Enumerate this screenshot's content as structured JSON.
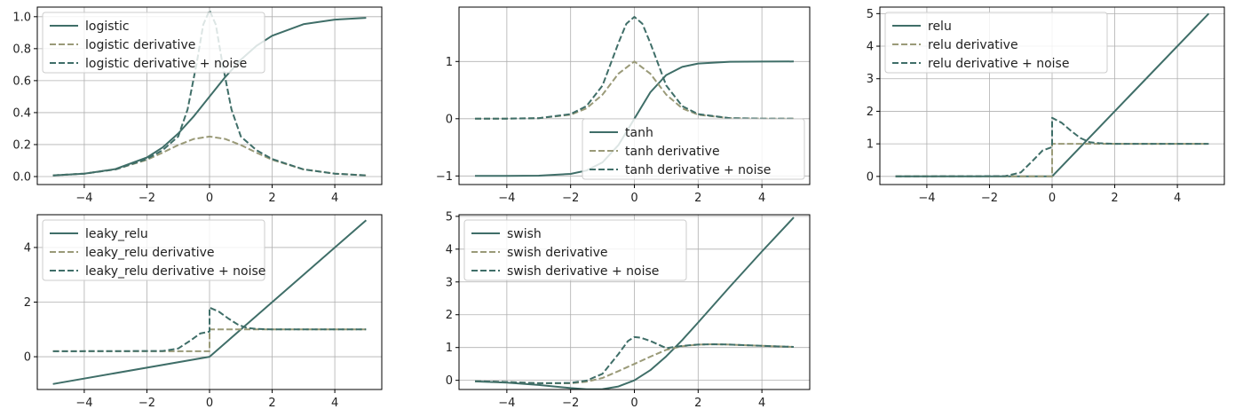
{
  "chart_data": [
    {
      "type": "line",
      "func": "logistic",
      "xlim": [
        -5.5,
        5.5
      ],
      "ylim": [
        -0.05,
        1.06
      ],
      "xticks": [
        -4,
        -2,
        0,
        2,
        4
      ],
      "xtick_labels": [
        "−4",
        "−2",
        "0",
        "2",
        "4"
      ],
      "yticks": [
        0,
        0.2,
        0.4,
        0.6,
        0.8,
        1.0
      ],
      "ytick_labels": [
        "0.0",
        "0.2",
        "0.4",
        "0.6",
        "0.8",
        "1.0"
      ],
      "grid": true,
      "legend_position": "top-left",
      "series": [
        {
          "name": "logistic",
          "color": "#3f6e68",
          "dash": "solid",
          "x": [
            -5,
            -4,
            -3,
            -2,
            -1.5,
            -1,
            -0.5,
            0,
            0.5,
            1,
            1.5,
            2,
            3,
            4,
            5
          ],
          "y": [
            0.007,
            0.018,
            0.047,
            0.119,
            0.182,
            0.269,
            0.378,
            0.5,
            0.622,
            0.731,
            0.818,
            0.881,
            0.953,
            0.982,
            0.993
          ]
        },
        {
          "name": "logistic derivative",
          "color": "#9a9a78",
          "dash": "dashed",
          "x": [
            -5,
            -4,
            -3,
            -2,
            -1.5,
            -1,
            -0.5,
            0,
            0.5,
            1,
            1.5,
            2,
            3,
            4,
            5
          ],
          "y": [
            0.007,
            0.018,
            0.045,
            0.105,
            0.149,
            0.197,
            0.235,
            0.25,
            0.235,
            0.197,
            0.149,
            0.105,
            0.045,
            0.018,
            0.007
          ]
        },
        {
          "name": "logistic derivative + noise",
          "color": "#3f6e68",
          "dash": "dashed",
          "x": [
            -5,
            -4,
            -3,
            -2,
            -1.5,
            -1,
            -0.7,
            -0.4,
            -0.2,
            0,
            0.2,
            0.4,
            0.7,
            1,
            1.5,
            2,
            3,
            4,
            5
          ],
          "y": [
            0.007,
            0.018,
            0.045,
            0.11,
            0.165,
            0.25,
            0.42,
            0.72,
            0.95,
            1.04,
            0.95,
            0.72,
            0.42,
            0.25,
            0.165,
            0.11,
            0.045,
            0.018,
            0.007
          ]
        }
      ]
    },
    {
      "type": "line",
      "func": "tanh",
      "xlim": [
        -5.5,
        5.5
      ],
      "ylim": [
        -1.15,
        1.95
      ],
      "xticks": [
        -4,
        -2,
        0,
        2,
        4
      ],
      "xtick_labels": [
        "−4",
        "−2",
        "0",
        "2",
        "4"
      ],
      "yticks": [
        -1,
        0,
        1
      ],
      "ytick_labels": [
        "−1",
        "0",
        "1"
      ],
      "grid": true,
      "legend_position": "bottom-right",
      "series": [
        {
          "name": "tanh",
          "color": "#3f6e68",
          "dash": "solid",
          "x": [
            -5,
            -4,
            -3,
            -2,
            -1.5,
            -1,
            -0.5,
            0,
            0.5,
            1,
            1.5,
            2,
            3,
            4,
            5
          ],
          "y": [
            -1,
            -0.999,
            -0.995,
            -0.964,
            -0.905,
            -0.762,
            -0.462,
            0,
            0.462,
            0.762,
            0.905,
            0.964,
            0.995,
            0.999,
            1
          ]
        },
        {
          "name": "tanh derivative",
          "color": "#9a9a78",
          "dash": "dashed",
          "x": [
            -5,
            -4,
            -3,
            -2,
            -1.5,
            -1,
            -0.5,
            0,
            0.5,
            1,
            1.5,
            2,
            3,
            4,
            5
          ],
          "y": [
            0,
            0.001,
            0.01,
            0.07,
            0.181,
            0.42,
            0.786,
            1,
            0.786,
            0.42,
            0.181,
            0.07,
            0.01,
            0.001,
            0
          ]
        },
        {
          "name": "tanh derivative + noise",
          "color": "#3f6e68",
          "dash": "dashed",
          "x": [
            -5,
            -4,
            -3,
            -2,
            -1.5,
            -1,
            -0.5,
            -0.25,
            0,
            0.25,
            0.5,
            1,
            1.5,
            2,
            3,
            4,
            5
          ],
          "y": [
            0,
            0.001,
            0.01,
            0.08,
            0.22,
            0.58,
            1.32,
            1.66,
            1.78,
            1.66,
            1.32,
            0.58,
            0.22,
            0.08,
            0.01,
            0.001,
            0
          ]
        }
      ]
    },
    {
      "type": "line",
      "func": "relu",
      "xlim": [
        -5.5,
        5.5
      ],
      "ylim": [
        -0.25,
        5.2
      ],
      "xticks": [
        -4,
        -2,
        0,
        2,
        4
      ],
      "xtick_labels": [
        "−4",
        "−2",
        "0",
        "2",
        "4"
      ],
      "yticks": [
        0,
        1,
        2,
        3,
        4,
        5
      ],
      "ytick_labels": [
        "0",
        "1",
        "2",
        "3",
        "4",
        "5"
      ],
      "grid": true,
      "legend_position": "top-left",
      "series": [
        {
          "name": "relu",
          "color": "#3f6e68",
          "dash": "solid",
          "x": [
            -5,
            0,
            5
          ],
          "y": [
            0,
            0,
            5
          ]
        },
        {
          "name": "relu derivative",
          "color": "#9a9a78",
          "dash": "dashed",
          "x": [
            -5,
            -0.001,
            0,
            5
          ],
          "y": [
            0,
            0,
            1,
            1
          ]
        },
        {
          "name": "relu derivative + noise",
          "color": "#3f6e68",
          "dash": "dashed",
          "x": [
            -5,
            -1.5,
            -1,
            -0.6,
            -0.3,
            -0.001,
            0,
            0.3,
            0.6,
            0.9,
            1.2,
            1.5,
            2,
            5
          ],
          "y": [
            0,
            0.01,
            0.12,
            0.5,
            0.8,
            0.9,
            1.8,
            1.65,
            1.4,
            1.18,
            1.05,
            1.02,
            1,
            1
          ]
        }
      ]
    },
    {
      "type": "line",
      "func": "leaky_relu",
      "xlim": [
        -5.5,
        5.5
      ],
      "ylim": [
        -1.2,
        5.2
      ],
      "xticks": [
        -4,
        -2,
        0,
        2,
        4
      ],
      "xtick_labels": [
        "−4",
        "−2",
        "0",
        "2",
        "4"
      ],
      "yticks": [
        0,
        2,
        4
      ],
      "ytick_labels": [
        "0",
        "2",
        "4"
      ],
      "grid": true,
      "legend_position": "top-left",
      "series": [
        {
          "name": "leaky_relu",
          "color": "#3f6e68",
          "dash": "solid",
          "x": [
            -5,
            0,
            5
          ],
          "y": [
            -1,
            0,
            5
          ]
        },
        {
          "name": "leaky_relu derivative",
          "color": "#9a9a78",
          "dash": "dashed",
          "x": [
            -5,
            -0.001,
            0,
            5
          ],
          "y": [
            0.2,
            0.2,
            1,
            1
          ]
        },
        {
          "name": "leaky_relu derivative + noise",
          "color": "#3f6e68",
          "dash": "dashed",
          "x": [
            -5,
            -1.5,
            -1,
            -0.6,
            -0.3,
            -0.001,
            0,
            0.3,
            0.6,
            0.9,
            1.2,
            1.5,
            2,
            5
          ],
          "y": [
            0.2,
            0.21,
            0.3,
            0.6,
            0.85,
            0.92,
            1.8,
            1.65,
            1.4,
            1.18,
            1.05,
            1.02,
            1,
            1
          ]
        }
      ]
    },
    {
      "type": "line",
      "func": "swish",
      "xlim": [
        -5.5,
        5.5
      ],
      "ylim": [
        -0.28,
        5.05
      ],
      "xticks": [
        -4,
        -2,
        0,
        2,
        4
      ],
      "xtick_labels": [
        "−4",
        "−2",
        "0",
        "2",
        "4"
      ],
      "yticks": [
        0,
        1,
        2,
        3,
        4,
        5
      ],
      "ytick_labels": [
        "0",
        "1",
        "2",
        "3",
        "4",
        "5"
      ],
      "grid": true,
      "legend_position": "top-left",
      "series": [
        {
          "name": "swish",
          "color": "#3f6e68",
          "dash": "solid",
          "x": [
            -5,
            -4,
            -3,
            -2,
            -1.5,
            -1,
            -0.5,
            0,
            0.5,
            1,
            1.5,
            2,
            3,
            4,
            5
          ],
          "y": [
            -0.033,
            -0.072,
            -0.142,
            -0.238,
            -0.273,
            -0.269,
            -0.189,
            0,
            0.311,
            0.731,
            1.227,
            1.762,
            2.858,
            3.928,
            4.967
          ]
        },
        {
          "name": "swish derivative",
          "color": "#9a9a78",
          "dash": "dashed",
          "x": [
            -5,
            -4,
            -3,
            -2,
            -1.5,
            -1,
            -0.5,
            0,
            0.5,
            1,
            1.5,
            2,
            2.5,
            3,
            4,
            5
          ],
          "y": [
            -0.027,
            -0.053,
            -0.088,
            -0.091,
            -0.043,
            0.072,
            0.28,
            0.5,
            0.72,
            0.93,
            1.04,
            1.09,
            1.1,
            1.09,
            1.05,
            1.02
          ]
        },
        {
          "name": "swish derivative + noise",
          "color": "#3f6e68",
          "dash": "dashed",
          "x": [
            -5,
            -4,
            -3,
            -2,
            -1.5,
            -1,
            -0.5,
            -0.2,
            0,
            0.2,
            0.5,
            1,
            1.5,
            2,
            2.5,
            3,
            4,
            5
          ],
          "y": [
            -0.027,
            -0.053,
            -0.088,
            -0.08,
            -0.01,
            0.2,
            0.8,
            1.2,
            1.32,
            1.3,
            1.2,
            0.98,
            1.05,
            1.09,
            1.1,
            1.09,
            1.05,
            1.02
          ]
        }
      ]
    }
  ]
}
